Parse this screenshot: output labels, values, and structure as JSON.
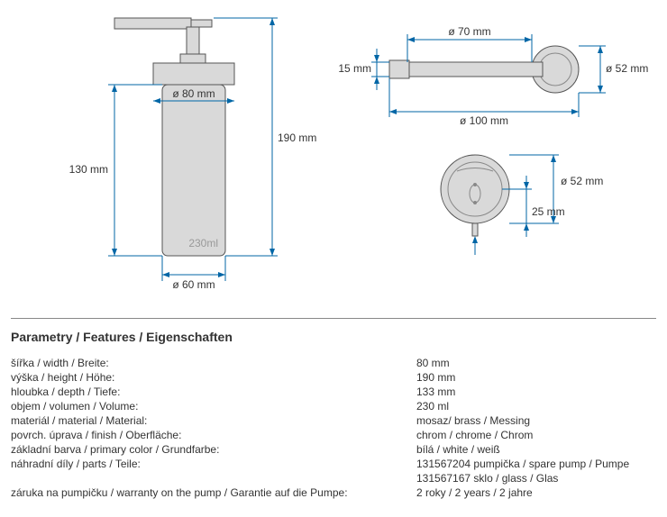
{
  "figure": {
    "front": {
      "dim_80": "ø 80 mm",
      "dim_60": "ø 60 mm",
      "dim_130": "130 mm",
      "dim_190": "190 mm",
      "volume": "230ml",
      "stroke": "#0066a6",
      "fill": "#d9d9d9"
    },
    "top": {
      "dim_70": "ø 70 mm",
      "dim_100": "ø 100 mm",
      "dim_15": "15 mm",
      "dim_52": "ø 52 mm",
      "stroke": "#0066a6",
      "fill": "#d9d9d9"
    },
    "plan": {
      "dim_52": "ø 52 mm",
      "dim_25": "25 mm",
      "stroke": "#0066a6",
      "fill": "#d9d9d9"
    }
  },
  "section_title": "Parametry / Features / Eigenschaften",
  "specs": [
    {
      "label": "šířka / width / Breite:",
      "value": "80 mm"
    },
    {
      "label": "výška / height / Höhe:",
      "value": "190 mm"
    },
    {
      "label": "hloubka / depth / Tiefe:",
      "value": "133 mm"
    },
    {
      "label": "objem / volumen / Volume:",
      "value": "230 ml"
    },
    {
      "label": "materiál / material / Material:",
      "value": "mosaz/ brass / Messing"
    },
    {
      "label": "povrch. úprava / finish / Oberfläche:",
      "value": "chrom / chrome / Chrom"
    },
    {
      "label": "základní barva / primary color / Grundfarbe:",
      "value": "bílá / white / weiß"
    },
    {
      "label": "náhradní díly / parts / Teile:",
      "value": "131567204  pumpička / spare pump / Pumpe"
    },
    {
      "label": "",
      "value": "131567167 sklo / glass / Glas"
    },
    {
      "label": "záruka na pumpičku / warranty on the pump / Garantie auf die Pumpe:",
      "value": "2 roky / 2 years / 2 jahre"
    }
  ]
}
